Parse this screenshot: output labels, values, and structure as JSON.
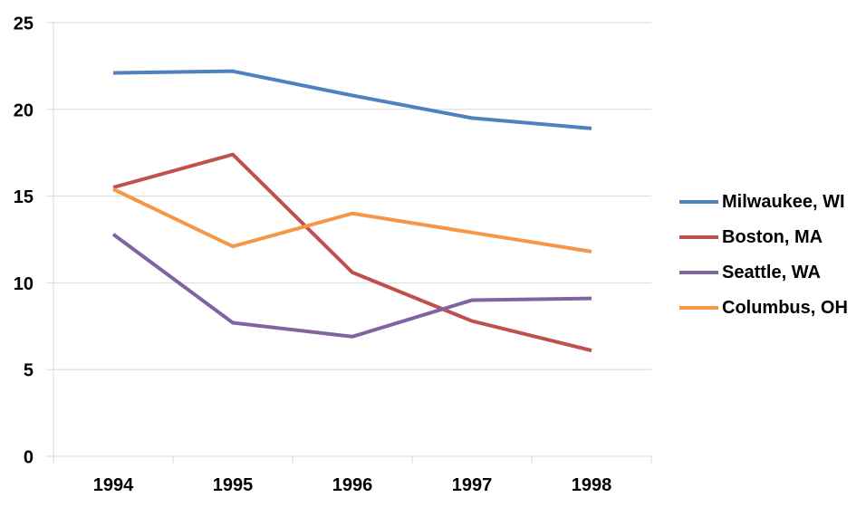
{
  "chart_data": {
    "type": "line",
    "title": "",
    "xlabel": "",
    "ylabel": "",
    "categories": [
      "1994",
      "1995",
      "1996",
      "1997",
      "1998"
    ],
    "series": [
      {
        "name": "Milwaukee, WI",
        "color": "#4F81BD",
        "values": [
          22.1,
          22.2,
          20.8,
          19.5,
          18.9
        ]
      },
      {
        "name": "Boston, MA",
        "color": "#C0504D",
        "values": [
          15.5,
          17.4,
          10.6,
          7.8,
          6.1
        ]
      },
      {
        "name": "Seattle, WA",
        "color": "#8064A2",
        "values": [
          12.8,
          7.7,
          6.9,
          9.0,
          9.1
        ]
      },
      {
        "name": "Columbus, OH",
        "color": "#F79646",
        "values": [
          15.4,
          12.1,
          14.0,
          12.9,
          11.8
        ]
      }
    ],
    "ylim": [
      0,
      25
    ],
    "y_ticks": [
      0,
      5,
      10,
      15,
      20,
      25
    ],
    "grid": "horizontal",
    "legend_position": "right",
    "axis_color": "#D9D9D9",
    "text_color": "#000000"
  }
}
